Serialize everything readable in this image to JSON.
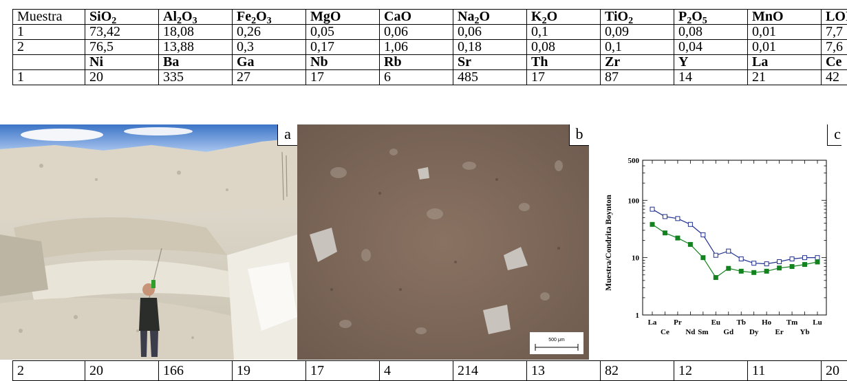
{
  "table": {
    "rows": [
      [
        "Muestra",
        "SiO₂",
        "Al₂O₃",
        "Fe₂O₃",
        "MgO",
        "CaO",
        "Na₂O",
        "K₂O",
        "TiO₂",
        "P₂O₅",
        "MnO",
        "LOI"
      ],
      [
        "1",
        "73,42",
        "18,08",
        "0,26",
        "0,05",
        "0,06",
        "0,06",
        "0,1",
        "0,09",
        "0,08",
        "0,01",
        "7,7"
      ],
      [
        "2",
        "76,5",
        "13,88",
        "0,3",
        "0,17",
        "1,06",
        "0,18",
        "0,08",
        "0,1",
        "0,04",
        "0,01",
        "7,6"
      ],
      [
        "",
        "Ni",
        "Ba",
        "Ga",
        "Nb",
        "Rb",
        "Sr",
        "Th",
        "Zr",
        "Y",
        "La",
        "Ce"
      ],
      [
        "1",
        "20",
        "335",
        "27",
        "17",
        "6",
        "485",
        "17",
        "87",
        "14",
        "21",
        "42"
      ]
    ],
    "bottom_row": [
      "2",
      "20",
      "166",
      "19",
      "17",
      "4",
      "214",
      "13",
      "82",
      "12",
      "11",
      "20"
    ]
  },
  "panels": {
    "a": {
      "label": "a"
    },
    "b": {
      "label": "b",
      "scale_label": "500 μm"
    },
    "c": {
      "label": "c"
    }
  },
  "chart_data": {
    "type": "line",
    "ylabel": "Muestra/Condrita Boynton",
    "yscale": "log",
    "ylim": [
      1,
      500
    ],
    "yticks": [
      "1",
      "10",
      "100",
      "500"
    ],
    "categories": [
      "La",
      "Ce",
      "Pr",
      "Nd",
      "Sm",
      "Eu",
      "Gd",
      "Tb",
      "Dy",
      "Ho",
      "Er",
      "Tm",
      "Yb",
      "Lu"
    ],
    "x_labels_upper": [
      "La",
      "Pr",
      "Eu",
      "Tb",
      "Ho",
      "Tm",
      "Lu"
    ],
    "x_labels_lower": [
      "Ce",
      "Nd",
      "Sm",
      "Gd",
      "Dy",
      "Er",
      "Yb"
    ],
    "series": [
      {
        "color": "#1f2f8f",
        "marker": "open-square",
        "values": [
          70,
          52,
          48,
          38,
          25,
          11,
          13,
          9.5,
          8,
          7.8,
          8.5,
          9.5,
          10,
          10
        ]
      },
      {
        "color": "#13821f",
        "marker": "filled-square",
        "values": [
          38,
          27,
          22,
          17,
          10,
          4.5,
          6.5,
          5.8,
          5.5,
          5.8,
          6.6,
          7,
          7.6,
          8.4
        ]
      }
    ]
  },
  "colors": {
    "series_1": "#1f2f8f",
    "series_2": "#13821f"
  }
}
